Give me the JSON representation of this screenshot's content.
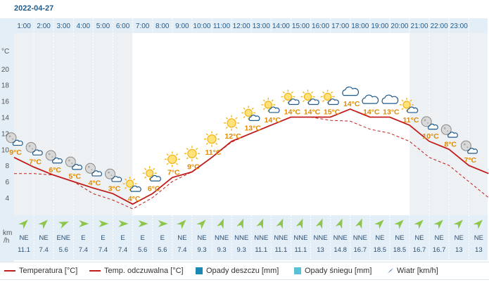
{
  "chart_data": {
    "type": "line",
    "title": "2022-04-27",
    "y_unit": "°C",
    "wind_unit_top": "km",
    "wind_unit_bottom": "/h",
    "ylim": [
      2,
      22
    ],
    "yticks": [
      4,
      6,
      8,
      10,
      12,
      14,
      16,
      18,
      20
    ],
    "hours": [
      "1:00",
      "2:00",
      "3:00",
      "4:00",
      "5:00",
      "6:00",
      "7:00",
      "8:00",
      "9:00",
      "10:00",
      "11:00",
      "12:00",
      "13:00",
      "14:00",
      "15:00",
      "16:00",
      "17:00",
      "18:00",
      "19:00",
      "20:00",
      "21:00",
      "22:00",
      "23:00"
    ],
    "daylight_hours": [
      6,
      20
    ],
    "x": [
      0,
      1,
      2,
      3,
      4,
      5,
      6,
      7,
      8,
      9,
      10,
      11,
      12,
      13,
      14,
      15,
      16,
      17,
      18,
      19,
      20,
      21,
      22,
      23,
      24
    ],
    "series": [
      {
        "name": "Temperatura [°C]",
        "style": "solid",
        "values": [
          9,
          7.8,
          6.8,
          6,
          5.2,
          4.5,
          3.2,
          4.5,
          6.5,
          7.2,
          9,
          11,
          12,
          13,
          14,
          14,
          14,
          15,
          14,
          14,
          13,
          11,
          10,
          8,
          7
        ]
      },
      {
        "name": "Temp. odczuwalna [°C]",
        "style": "dashed",
        "values": [
          7,
          7,
          6.8,
          6,
          4.5,
          3.7,
          2.6,
          4,
          6,
          7.2,
          9,
          10.9,
          12,
          13,
          14,
          14,
          13.6,
          13.5,
          12.5,
          12,
          11,
          9,
          8,
          6,
          4
        ]
      }
    ],
    "temp_labels": [
      {
        "hour": 0,
        "text": "9°C",
        "icon": "night-partly-cloudy"
      },
      {
        "hour": 1,
        "text": "7°C",
        "icon": "night-partly-cloudy"
      },
      {
        "hour": 2,
        "text": "6°C",
        "icon": "night-partly-cloudy"
      },
      {
        "hour": 3,
        "text": "5°C",
        "icon": "night-partly-cloudy"
      },
      {
        "hour": 4,
        "text": "4°C",
        "icon": "night-partly-cloudy"
      },
      {
        "hour": 5,
        "text": "3°C",
        "icon": "night-partly-cloudy"
      },
      {
        "hour": 6,
        "text": "4°C",
        "icon": "sun-behind-cloud"
      },
      {
        "hour": 7,
        "text": "6°C",
        "icon": "sun-behind-cloud"
      },
      {
        "hour": 8,
        "text": "7°C",
        "icon": "sun"
      },
      {
        "hour": 9,
        "text": "9°C",
        "icon": "sun"
      },
      {
        "hour": 10,
        "text": "11°C",
        "icon": "sun"
      },
      {
        "hour": 11,
        "text": "12°C",
        "icon": "sun"
      },
      {
        "hour": 12,
        "text": "13°C",
        "icon": "sun-behind-cloud"
      },
      {
        "hour": 13,
        "text": "14°C",
        "icon": "sun-behind-cloud"
      },
      {
        "hour": 14,
        "text": "14°C",
        "icon": "sun-behind-cloud"
      },
      {
        "hour": 15,
        "text": "14°C",
        "icon": "sun-behind-cloud"
      },
      {
        "hour": 16,
        "text": "15°C",
        "icon": "sun-behind-cloud"
      },
      {
        "hour": 17,
        "text": "14°C",
        "icon": "cloud"
      },
      {
        "hour": 18,
        "text": "14°C",
        "icon": "cloud"
      },
      {
        "hour": 19,
        "text": "13°C",
        "icon": "cloud"
      },
      {
        "hour": 20,
        "text": "11°C",
        "icon": "sun-behind-cloud"
      },
      {
        "hour": 21,
        "text": "10°C",
        "icon": "night-partly-cloudy"
      },
      {
        "hour": 22,
        "text": "8°C",
        "icon": "night-partly-cloudy"
      },
      {
        "hour": 23,
        "text": "7°C",
        "icon": "night-partly-cloudy"
      }
    ],
    "wind": [
      {
        "dir": "NE",
        "deg": 45,
        "speed": "11.1"
      },
      {
        "dir": "NE",
        "deg": 45,
        "speed": "7.4"
      },
      {
        "dir": "ENE",
        "deg": 67,
        "speed": "5.6"
      },
      {
        "dir": "E",
        "deg": 90,
        "speed": "7.4"
      },
      {
        "dir": "E",
        "deg": 90,
        "speed": "7.4"
      },
      {
        "dir": "E",
        "deg": 90,
        "speed": "7.4"
      },
      {
        "dir": "E",
        "deg": 90,
        "speed": "5.6"
      },
      {
        "dir": "E",
        "deg": 90,
        "speed": "5.6"
      },
      {
        "dir": "NE",
        "deg": 45,
        "speed": "7.4"
      },
      {
        "dir": "NE",
        "deg": 45,
        "speed": "9.3"
      },
      {
        "dir": "NNE",
        "deg": 22,
        "speed": "9.3"
      },
      {
        "dir": "NNE",
        "deg": 22,
        "speed": "9.3"
      },
      {
        "dir": "NNE",
        "deg": 22,
        "speed": "11.1"
      },
      {
        "dir": "NNE",
        "deg": 22,
        "speed": "11.1"
      },
      {
        "dir": "NNE",
        "deg": 22,
        "speed": "11.1"
      },
      {
        "dir": "NNE",
        "deg": 22,
        "speed": "13"
      },
      {
        "dir": "NNE",
        "deg": 22,
        "speed": "14.8"
      },
      {
        "dir": "NNE",
        "deg": 22,
        "speed": "16.7"
      },
      {
        "dir": "NE",
        "deg": 45,
        "speed": "18.5"
      },
      {
        "dir": "NE",
        "deg": 45,
        "speed": "18.5"
      },
      {
        "dir": "NE",
        "deg": 45,
        "speed": "16.7"
      },
      {
        "dir": "NE",
        "deg": 45,
        "speed": "16.7"
      },
      {
        "dir": "NE",
        "deg": 45,
        "speed": "13"
      },
      {
        "dir": "NE",
        "deg": 45,
        "speed": "13"
      }
    ],
    "legend": [
      "Temperatura [°C]",
      "Temp. odczuwalna [°C]",
      "Opady deszczu [mm]",
      "Opady śniegu [mm]",
      "Wiatr [km/h]"
    ],
    "colors": {
      "temperature": "#c11d1d",
      "label": "#e08a00",
      "header_text": "#1f5a8c",
      "rain": "#1b87b5",
      "snow": "#59c1d6",
      "wind_arrow": "#8ec64b"
    }
  }
}
